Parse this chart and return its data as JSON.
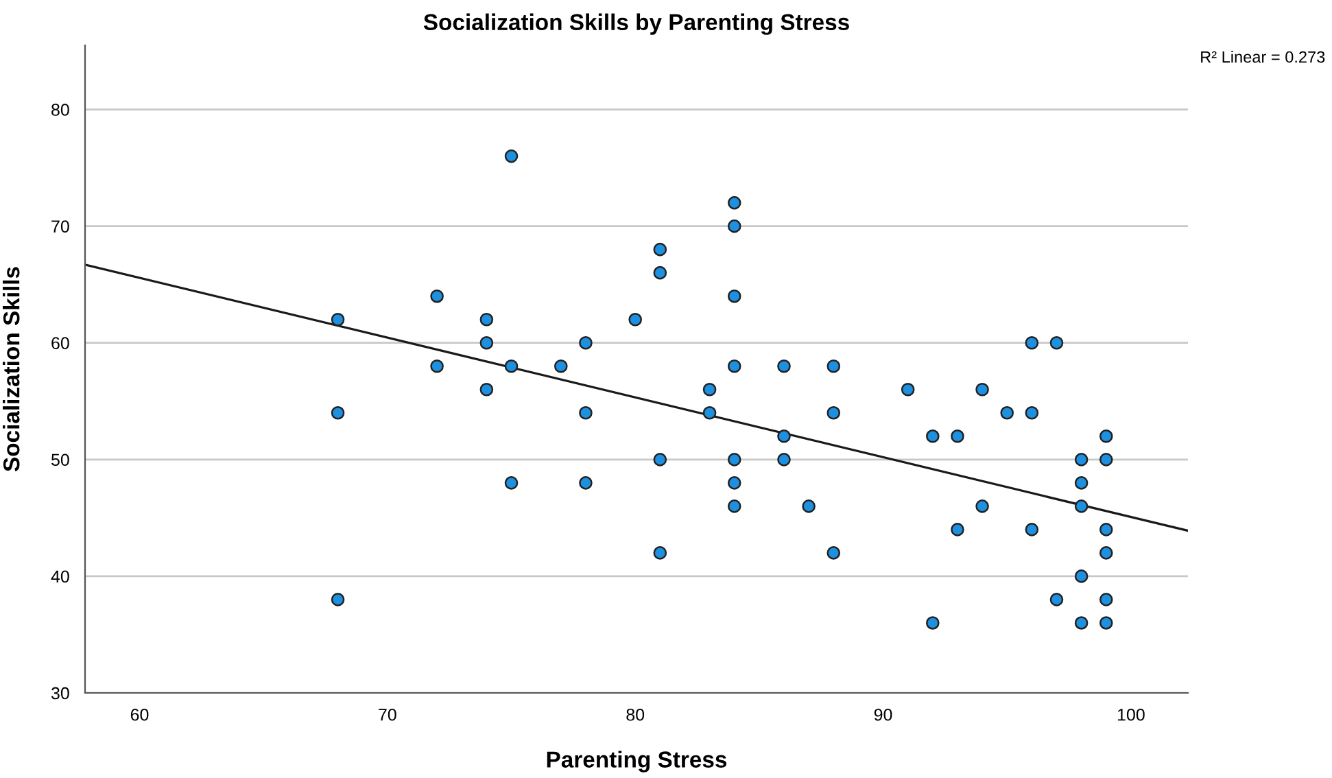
{
  "chart_data": {
    "type": "scatter",
    "title": "Socialization Skills by Parenting Stress",
    "xlabel": "Parenting Stress",
    "ylabel": "Socialization Skills",
    "annotations": [
      "R² Linear = 0.273"
    ],
    "xlim": [
      57.8,
      102.3
    ],
    "xticks": [
      60,
      70,
      80,
      90,
      100
    ],
    "ylim": [
      30,
      85.5
    ],
    "yticks": [
      30,
      40,
      50,
      60,
      70,
      80
    ],
    "grid": "y",
    "legend": false,
    "series": [
      {
        "color": "#1e90e0",
        "marker": "circle",
        "x": [
          68,
          68,
          68,
          72,
          72,
          74,
          74,
          74,
          75,
          75,
          75,
          77,
          78,
          78,
          78,
          80,
          81,
          81,
          81,
          81,
          83,
          83,
          84,
          84,
          84,
          84,
          84,
          84,
          84,
          86,
          86,
          86,
          87,
          88,
          88,
          88,
          91,
          92,
          92,
          93,
          93,
          94,
          94,
          95,
          96,
          96,
          96,
          97,
          97,
          98,
          98,
          98,
          98,
          98,
          99,
          99,
          99,
          99,
          99,
          99
        ],
        "values": [
          62,
          54,
          38,
          64,
          58,
          62,
          60,
          56,
          76,
          58,
          48,
          58,
          60,
          54,
          48,
          62,
          68,
          66,
          50,
          42,
          56,
          54,
          72,
          70,
          64,
          58,
          50,
          48,
          46,
          58,
          52,
          50,
          46,
          58,
          54,
          42,
          56,
          52,
          36,
          52,
          44,
          56,
          46,
          54,
          60,
          54,
          44,
          60,
          38,
          50,
          48,
          46,
          40,
          36,
          52,
          50,
          44,
          42,
          38,
          36
        ]
      },
      {
        "type": "line",
        "color": "#1a1a1a",
        "marker": "none",
        "x": [
          57.8,
          102.3
        ],
        "values": [
          66.7,
          43.9
        ]
      }
    ]
  }
}
